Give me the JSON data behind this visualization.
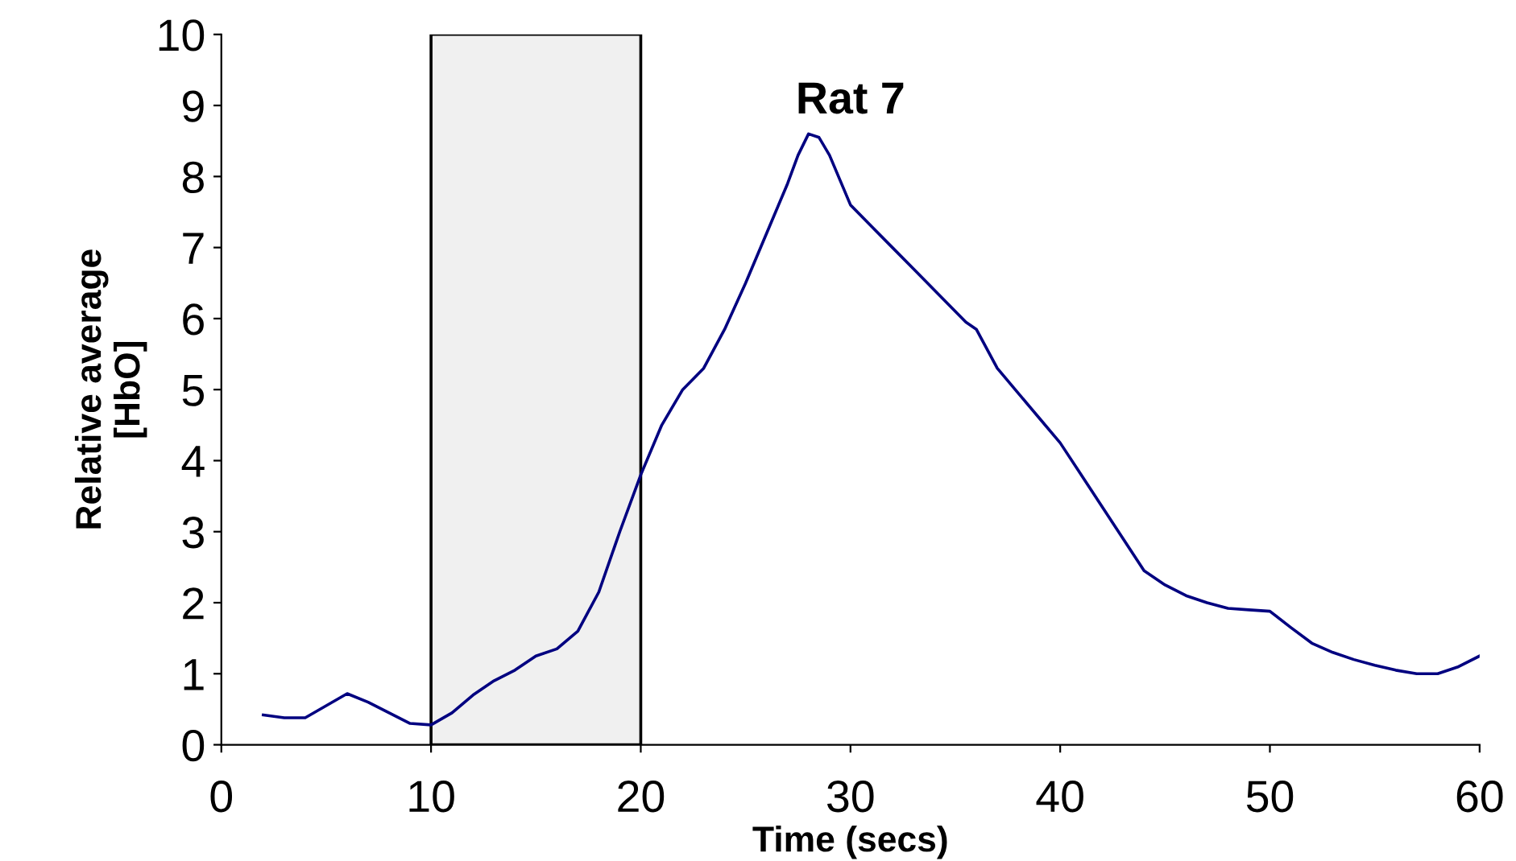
{
  "chart_data": {
    "type": "line",
    "title": "Rat 7",
    "xlabel": "Time (secs)",
    "ylabel": "Relative average\n[HbO]",
    "x": [
      2,
      3,
      4,
      5,
      6,
      7,
      8,
      9,
      10,
      11,
      12,
      13,
      14,
      15,
      16,
      17,
      18,
      19,
      20,
      21,
      22,
      23,
      24,
      25,
      26,
      27,
      27.5,
      28,
      28.5,
      29,
      30,
      31,
      32,
      33,
      34,
      35,
      35.5,
      36,
      37,
      38,
      39,
      40,
      41,
      42,
      43,
      44,
      45,
      46,
      47,
      48,
      49,
      50,
      51,
      52,
      53,
      54,
      55,
      56,
      57,
      58,
      59,
      60
    ],
    "series": [
      {
        "color": "#000080",
        "values": [
          0.42,
          0.38,
          0.38,
          0.55,
          0.72,
          0.6,
          0.45,
          0.3,
          0.28,
          0.45,
          0.7,
          0.9,
          1.05,
          1.25,
          1.35,
          1.6,
          2.15,
          3.0,
          3.8,
          4.5,
          5.0,
          5.3,
          5.85,
          6.5,
          7.2,
          7.9,
          8.3,
          8.6,
          8.55,
          8.3,
          7.6,
          7.3,
          7.0,
          6.7,
          6.4,
          6.1,
          5.95,
          5.85,
          5.3,
          4.95,
          4.6,
          4.25,
          3.8,
          3.35,
          2.9,
          2.45,
          2.25,
          2.1,
          2.0,
          1.92,
          1.9,
          1.88,
          1.65,
          1.43,
          1.3,
          1.2,
          1.12,
          1.05,
          1.0,
          1.0,
          1.1,
          1.25
        ]
      }
    ],
    "xlim": [
      0,
      60
    ],
    "xticks": [
      0,
      10,
      20,
      30,
      40,
      50,
      60
    ],
    "ylim": [
      0,
      10
    ],
    "yticks": [
      0,
      1,
      2,
      3,
      4,
      5,
      6,
      7,
      8,
      9,
      10
    ],
    "bands": [
      {
        "axis": "x",
        "from": 10,
        "to": 20,
        "color": "#000000"
      }
    ],
    "grid": false,
    "legend": false,
    "marker": "none",
    "line_style": "solid"
  }
}
